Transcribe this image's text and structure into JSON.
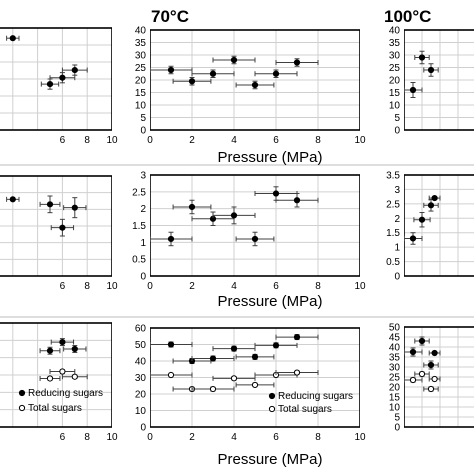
{
  "figure": {
    "xlabel": "Pressure (MPa)",
    "panel_titles": [
      "70°C",
      "100°C"
    ],
    "legend": {
      "filled": "Reducing sugars",
      "open": "Total sugars"
    },
    "colors": {
      "axis": "#000000",
      "grid": "#d0d0d0",
      "marker": "#000000",
      "error": "#404040",
      "divider": "#bdbdbd"
    }
  },
  "chart_data": [
    {
      "type": "scatter",
      "row": 1,
      "column": 1,
      "title": "",
      "xlabel": "",
      "ylabel": "",
      "xlim": [
        0,
        10
      ],
      "xticks": [
        "6",
        "8",
        "10"
      ],
      "ylim": [
        0,
        40
      ],
      "yticks": [],
      "grid": true,
      "series": [
        {
          "marker": "filled",
          "points": [
            {
              "x": 2,
              "y": 36,
              "xerr": 0.5,
              "yerr": 0
            },
            {
              "x": 5,
              "y": 18,
              "xerr": 0.7,
              "yerr": 2
            },
            {
              "x": 6,
              "y": 20.5,
              "xerr": 1.0,
              "yerr": 2
            },
            {
              "x": 7,
              "y": 23.5,
              "xerr": 1.0,
              "yerr": 2
            }
          ]
        }
      ]
    },
    {
      "type": "scatter",
      "row": 1,
      "column": 2,
      "title": "70°C",
      "xlabel": "Pressure (MPa)",
      "ylabel": "",
      "xlim": [
        0,
        10
      ],
      "xticks": [
        "0",
        "2",
        "4",
        "6",
        "8",
        "10"
      ],
      "ylim": [
        0,
        40
      ],
      "yticks": [
        "0",
        "5",
        "10",
        "15",
        "20",
        "25",
        "30",
        "35",
        "40"
      ],
      "grid": true,
      "series": [
        {
          "marker": "filled",
          "points": [
            {
              "x": 1,
              "y": 24,
              "xerr": 1.0,
              "yerr": 1.5
            },
            {
              "x": 2,
              "y": 19.5,
              "xerr": 0.9,
              "yerr": 1.5
            },
            {
              "x": 3,
              "y": 22.5,
              "xerr": 1.0,
              "yerr": 1.5
            },
            {
              "x": 4,
              "y": 28,
              "xerr": 1.0,
              "yerr": 1.5
            },
            {
              "x": 5,
              "y": 18,
              "xerr": 0.9,
              "yerr": 1.5
            },
            {
              "x": 6,
              "y": 22.5,
              "xerr": 1.0,
              "yerr": 1.5
            },
            {
              "x": 7,
              "y": 27,
              "xerr": 1.0,
              "yerr": 1.5
            }
          ]
        }
      ]
    },
    {
      "type": "scatter",
      "row": 1,
      "column": 3,
      "title": "100°C",
      "xlabel": "",
      "ylabel": "",
      "xlim": [
        0,
        10
      ],
      "xticks": [],
      "ylim": [
        0,
        40
      ],
      "yticks": [
        "0",
        "5",
        "10",
        "15",
        "20",
        "25",
        "30",
        "35",
        "40"
      ],
      "grid": true,
      "series": [
        {
          "marker": "filled",
          "points": [
            {
              "x": 1,
              "y": 16,
              "xerr": 1.0,
              "yerr": 3
            },
            {
              "x": 2,
              "y": 29,
              "xerr": 0.8,
              "yerr": 2.5
            },
            {
              "x": 3,
              "y": 24,
              "xerr": 0.8,
              "yerr": 2.5
            }
          ]
        }
      ]
    },
    {
      "type": "scatter",
      "row": 2,
      "column": 1,
      "title": "",
      "xlabel": "",
      "ylabel": "",
      "xlim": [
        0,
        10
      ],
      "xticks": [
        "6",
        "8",
        "10"
      ],
      "ylim": [
        0,
        3
      ],
      "yticks": [],
      "grid": true,
      "series": [
        {
          "marker": "filled",
          "points": [
            {
              "x": 2,
              "y": 2.3,
              "xerr": 0.5,
              "yerr": 0
            },
            {
              "x": 5,
              "y": 2.15,
              "xerr": 0.8,
              "yerr": 0.25
            },
            {
              "x": 6,
              "y": 1.45,
              "xerr": 0.9,
              "yerr": 0.25
            },
            {
              "x": 7,
              "y": 2.05,
              "xerr": 0.9,
              "yerr": 0.3
            }
          ]
        }
      ]
    },
    {
      "type": "scatter",
      "row": 2,
      "column": 2,
      "title": "",
      "xlabel": "Pressure (MPa)",
      "ylabel": "",
      "xlim": [
        0,
        10
      ],
      "xticks": [
        "0",
        "2",
        "4",
        "6",
        "8",
        "10"
      ],
      "ylim": [
        0,
        3
      ],
      "yticks": [
        "0",
        "0.5",
        "1",
        "1.5",
        "2",
        "2.5",
        "3"
      ],
      "grid": true,
      "series": [
        {
          "marker": "filled",
          "points": [
            {
              "x": 1,
              "y": 1.1,
              "xerr": 1.0,
              "yerr": 0.2
            },
            {
              "x": 2,
              "y": 2.05,
              "xerr": 0.9,
              "yerr": 0.2
            },
            {
              "x": 3,
              "y": 1.7,
              "xerr": 1.0,
              "yerr": 0.2
            },
            {
              "x": 4,
              "y": 1.8,
              "xerr": 1.0,
              "yerr": 0.25
            },
            {
              "x": 5,
              "y": 1.1,
              "xerr": 0.9,
              "yerr": 0.2
            },
            {
              "x": 6,
              "y": 2.45,
              "xerr": 1.0,
              "yerr": 0.2
            },
            {
              "x": 7,
              "y": 2.25,
              "xerr": 1.0,
              "yerr": 0.2
            }
          ]
        }
      ]
    },
    {
      "type": "scatter",
      "row": 2,
      "column": 3,
      "title": "",
      "xlabel": "",
      "ylabel": "",
      "xlim": [
        0,
        10
      ],
      "xticks": [],
      "ylim": [
        0,
        3.5
      ],
      "yticks": [
        "0",
        "0.5",
        "1",
        "1.5",
        "2",
        "2.5",
        "3",
        "3.5"
      ],
      "grid": true,
      "series": [
        {
          "marker": "filled",
          "points": [
            {
              "x": 1,
              "y": 1.3,
              "xerr": 1.0,
              "yerr": 0.2
            },
            {
              "x": 2,
              "y": 1.95,
              "xerr": 0.9,
              "yerr": 0.25
            },
            {
              "x": 3,
              "y": 2.45,
              "xerr": 0.8,
              "yerr": 0.2
            },
            {
              "x": 3.4,
              "y": 2.7,
              "xerr": 0.6,
              "yerr": 0
            }
          ]
        }
      ]
    },
    {
      "type": "scatter",
      "row": 3,
      "column": 1,
      "title": "",
      "xlabel": "",
      "ylabel": "",
      "xlim": [
        0,
        10
      ],
      "xticks": [
        "6",
        "8",
        "10"
      ],
      "ylim": [
        0,
        60
      ],
      "yticks": [],
      "grid": true,
      "series": [
        {
          "name": "Reducing sugars",
          "marker": "filled",
          "points": [
            {
              "x": 5,
              "y": 44,
              "xerr": 0.8,
              "yerr": 2
            },
            {
              "x": 6,
              "y": 49,
              "xerr": 0.9,
              "yerr": 2
            },
            {
              "x": 7,
              "y": 45,
              "xerr": 0.9,
              "yerr": 2
            }
          ]
        },
        {
          "name": "Total sugars",
          "marker": "open",
          "points": [
            {
              "x": 5,
              "y": 28,
              "xerr": 0.8,
              "yerr": 1
            },
            {
              "x": 6,
              "y": 32,
              "xerr": 1.0,
              "yerr": 1
            },
            {
              "x": 7,
              "y": 29,
              "xerr": 1.0,
              "yerr": 1
            }
          ]
        }
      ]
    },
    {
      "type": "scatter",
      "row": 3,
      "column": 2,
      "title": "",
      "xlabel": "Pressure (MPa)",
      "ylabel": "",
      "xlim": [
        0,
        10
      ],
      "xticks": [
        "0",
        "2",
        "4",
        "6",
        "8",
        "10"
      ],
      "ylim": [
        0,
        60
      ],
      "yticks": [
        "0",
        "10",
        "20",
        "30",
        "40",
        "50",
        "60"
      ],
      "grid": true,
      "series": [
        {
          "name": "Reducing sugars",
          "marker": "filled",
          "points": [
            {
              "x": 1,
              "y": 50,
              "xerr": 1.0,
              "yerr": 1.5
            },
            {
              "x": 2,
              "y": 40,
              "xerr": 0.9,
              "yerr": 1.5
            },
            {
              "x": 3,
              "y": 41.5,
              "xerr": 1.0,
              "yerr": 1.5
            },
            {
              "x": 4,
              "y": 47.5,
              "xerr": 1.0,
              "yerr": 1.5
            },
            {
              "x": 5,
              "y": 42.5,
              "xerr": 0.9,
              "yerr": 1.5
            },
            {
              "x": 6,
              "y": 49.5,
              "xerr": 1.0,
              "yerr": 1.5
            },
            {
              "x": 7,
              "y": 54.5,
              "xerr": 1.0,
              "yerr": 1.5
            }
          ]
        },
        {
          "name": "Total sugars",
          "marker": "open",
          "points": [
            {
              "x": 1,
              "y": 31.5,
              "xerr": 1.0,
              "yerr": 1
            },
            {
              "x": 2,
              "y": 23,
              "xerr": 0.9,
              "yerr": 1
            },
            {
              "x": 3,
              "y": 23,
              "xerr": 1.0,
              "yerr": 1
            },
            {
              "x": 4,
              "y": 29.5,
              "xerr": 1.0,
              "yerr": 1
            },
            {
              "x": 5,
              "y": 25.5,
              "xerr": 0.9,
              "yerr": 1
            },
            {
              "x": 6,
              "y": 31.5,
              "xerr": 1.0,
              "yerr": 1
            },
            {
              "x": 7,
              "y": 33,
              "xerr": 1.0,
              "yerr": 1
            }
          ]
        }
      ]
    },
    {
      "type": "scatter",
      "row": 3,
      "column": 3,
      "title": "",
      "xlabel": "",
      "ylabel": "",
      "xlim": [
        0,
        10
      ],
      "xticks": [],
      "ylim": [
        0,
        50
      ],
      "yticks": [
        "0",
        "5",
        "10",
        "15",
        "20",
        "25",
        "30",
        "35",
        "40",
        "45",
        "50"
      ],
      "grid": true,
      "series": [
        {
          "name": "Reducing sugars",
          "marker": "filled",
          "points": [
            {
              "x": 1,
              "y": 37.5,
              "xerr": 1.0,
              "yerr": 2
            },
            {
              "x": 2,
              "y": 43,
              "xerr": 0.8,
              "yerr": 2
            },
            {
              "x": 3,
              "y": 31,
              "xerr": 0.8,
              "yerr": 2
            },
            {
              "x": 3.4,
              "y": 37,
              "xerr": 0.6,
              "yerr": 0
            }
          ]
        },
        {
          "name": "Total sugars",
          "marker": "open",
          "points": [
            {
              "x": 1,
              "y": 23.5,
              "xerr": 1.0,
              "yerr": 1
            },
            {
              "x": 2,
              "y": 26.5,
              "xerr": 0.8,
              "yerr": 1
            },
            {
              "x": 3,
              "y": 19,
              "xerr": 0.8,
              "yerr": 1
            },
            {
              "x": 3.4,
              "y": 24,
              "xerr": 0.6,
              "yerr": 0
            }
          ]
        }
      ]
    }
  ]
}
